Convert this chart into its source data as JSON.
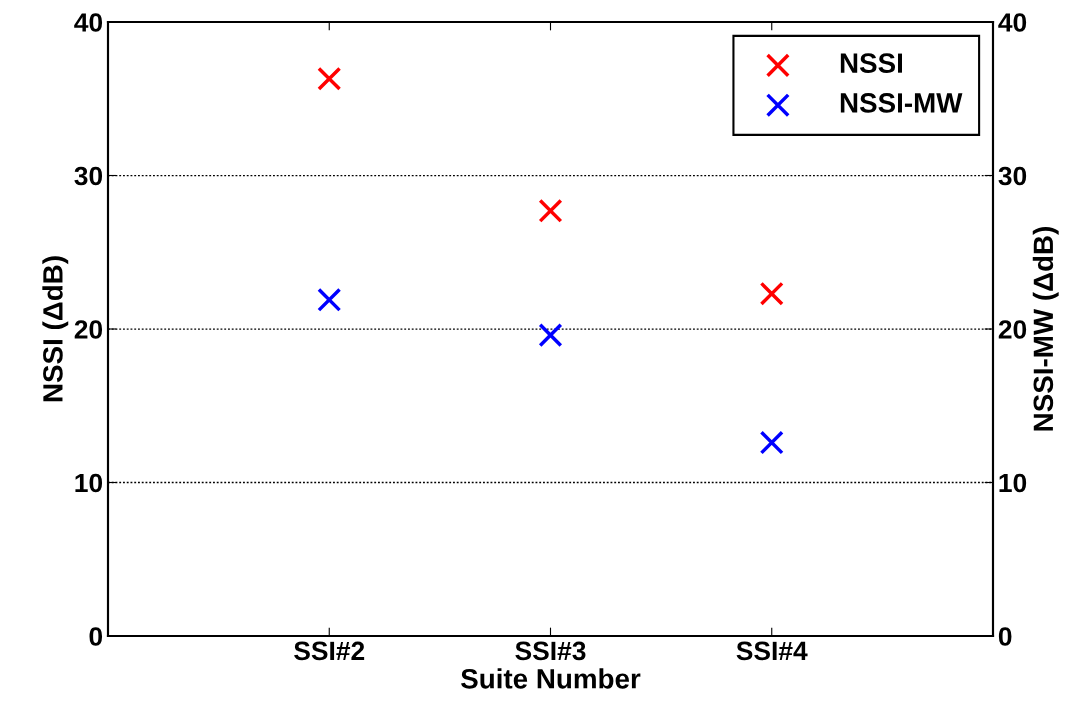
{
  "chart_data": {
    "type": "scatter",
    "xlabel": "Suite Number",
    "ylabel": "NSSI (ΔdB)",
    "y2label": "NSSI-MW (ΔdB)",
    "categories": [
      "SSI#2",
      "SSI#3",
      "SSI#4"
    ],
    "series": [
      {
        "name": "NSSI",
        "color": "#ff0000",
        "values": [
          36.3,
          27.7,
          22.3
        ]
      },
      {
        "name": "NSSI-MW",
        "color": "#0000ff",
        "values": [
          21.9,
          19.6,
          12.6
        ]
      }
    ],
    "ylim": [
      0,
      40
    ],
    "yticks": [
      0,
      10,
      20,
      30,
      40
    ],
    "y2lim": [
      0,
      40
    ],
    "y2ticks": [
      0,
      10,
      20,
      30,
      40
    ],
    "grid": "y",
    "legend": "top right",
    "marker": "cross"
  }
}
